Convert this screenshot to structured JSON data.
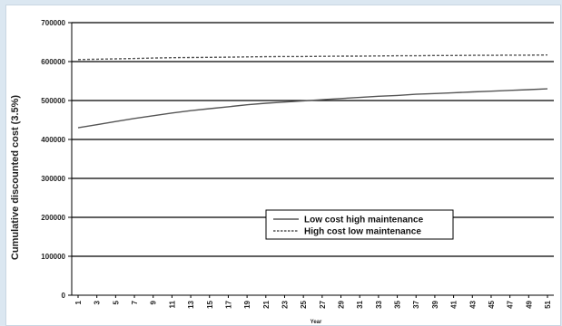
{
  "chart_data": {
    "type": "line",
    "title": "",
    "xlabel": "Year",
    "ylabel": "Cumulative discounted cost (3.5%)",
    "x": [
      1,
      3,
      5,
      7,
      9,
      11,
      13,
      15,
      17,
      19,
      21,
      23,
      25,
      27,
      29,
      31,
      33,
      35,
      37,
      39,
      41,
      43,
      45,
      47,
      49,
      51
    ],
    "x_ticks": [
      "1",
      "3",
      "5",
      "7",
      "9",
      "11",
      "13",
      "15",
      "17",
      "19",
      "21",
      "23",
      "25",
      "27",
      "29",
      "31",
      "33",
      "35",
      "37",
      "39",
      "41",
      "43",
      "45",
      "47",
      "49",
      "51"
    ],
    "y_ticks": [
      "0",
      "100000",
      "200000",
      "300000",
      "400000",
      "500000",
      "600000",
      "700000"
    ],
    "ylim": [
      0,
      700000
    ],
    "xlim": [
      1,
      51
    ],
    "grid": "horizontal",
    "legend_position": "center-right",
    "series": [
      {
        "name": "Low cost high maintenance",
        "style": "solid",
        "color": "#555555",
        "values": [
          430000,
          438000,
          446000,
          454000,
          461000,
          468000,
          474000,
          479000,
          484000,
          489000,
          493000,
          496000,
          499000,
          502000,
          505000,
          508000,
          511000,
          513000,
          516000,
          518000,
          520000,
          522000,
          524000,
          526000,
          528000,
          530000
        ]
      },
      {
        "name": "High cost low maintenance",
        "style": "dashed",
        "color": "#555555",
        "values": [
          605000,
          606000,
          607000,
          608000,
          609000,
          610000,
          610500,
          611000,
          611500,
          612000,
          612500,
          613000,
          613000,
          613500,
          614000,
          614000,
          614500,
          615000,
          615000,
          615500,
          615500,
          616000,
          616000,
          616500,
          616500,
          617000
        ]
      }
    ]
  }
}
